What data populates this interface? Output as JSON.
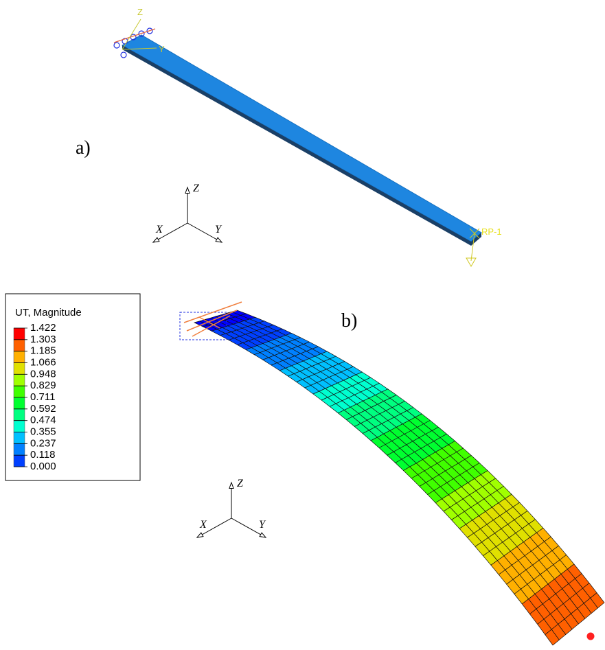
{
  "panel_a": {
    "label": "a)",
    "model_triad": {
      "z": "Z",
      "y": "Y"
    },
    "reference_point": "RP-1",
    "view_triad": {
      "z": "Z",
      "x": "X",
      "y": "Y"
    }
  },
  "panel_b": {
    "label": "b)",
    "legend": {
      "title": "UT, Magnitude",
      "levels": [
        "1.422",
        "1.303",
        "1.185",
        "1.066",
        "0.948",
        "0.829",
        "0.711",
        "0.592",
        "0.474",
        "0.355",
        "0.237",
        "0.118",
        "0.000"
      ]
    },
    "view_triad": {
      "z": "Z",
      "x": "X",
      "y": "Y"
    }
  }
}
